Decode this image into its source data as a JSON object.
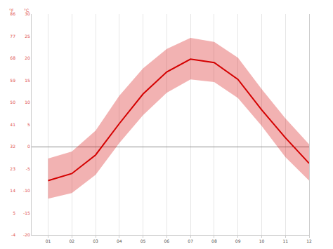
{
  "chart_data": {
    "type": "line",
    "categories": [
      "01",
      "02",
      "03",
      "04",
      "05",
      "06",
      "07",
      "08",
      "09",
      "10",
      "11",
      "12"
    ],
    "series": [
      {
        "color": "#d40000",
        "values": [
          -7.7,
          -6.1,
          -1.9,
          5.2,
          11.9,
          16.9,
          19.8,
          19.0,
          15.2,
          8.3,
          2.0,
          -3.8
        ],
        "low": [
          -11.8,
          -10.5,
          -6.4,
          0.8,
          7.1,
          12.2,
          15.2,
          14.6,
          11.0,
          4.7,
          -2.4,
          -7.7
        ],
        "high": [
          -2.7,
          -1.1,
          3.6,
          11.5,
          17.7,
          22.1,
          24.6,
          23.7,
          20.1,
          13.0,
          6.4,
          0.5
        ]
      }
    ],
    "ylabel": "°C",
    "y2label": "°F",
    "ylim": [
      -20,
      30
    ],
    "yticks": [
      -20,
      -15,
      -10,
      -5,
      0,
      5,
      10,
      15,
      20,
      25,
      30
    ],
    "y2lim": [
      -4,
      86
    ],
    "y2ticks": [
      -4,
      5,
      14,
      23,
      32,
      41,
      50,
      59,
      68,
      77,
      86
    ],
    "grid": true
  }
}
